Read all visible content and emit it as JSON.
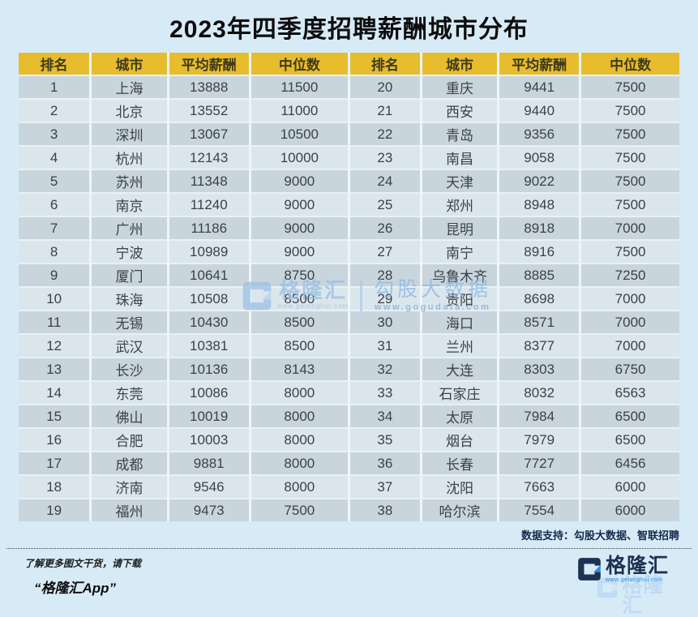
{
  "title": "2023年四季度招聘薪酬城市分布",
  "table": {
    "headers": [
      "排名",
      "城市",
      "平均薪酬",
      "中位数",
      "排名",
      "城市",
      "平均薪酬",
      "中位数"
    ]
  },
  "chart_data": {
    "type": "table",
    "title": "2023年四季度招聘薪酬城市分布",
    "columns": [
      "排名",
      "城市",
      "平均薪酬",
      "中位数"
    ],
    "rows": [
      [
        1,
        "上海",
        13888,
        11500
      ],
      [
        2,
        "北京",
        13552,
        11000
      ],
      [
        3,
        "深圳",
        13067,
        10500
      ],
      [
        4,
        "杭州",
        12143,
        10000
      ],
      [
        5,
        "苏州",
        11348,
        9000
      ],
      [
        6,
        "南京",
        11240,
        9000
      ],
      [
        7,
        "广州",
        11186,
        9000
      ],
      [
        8,
        "宁波",
        10989,
        9000
      ],
      [
        9,
        "厦门",
        10641,
        8750
      ],
      [
        10,
        "珠海",
        10508,
        8500
      ],
      [
        11,
        "无锡",
        10430,
        8500
      ],
      [
        12,
        "武汉",
        10381,
        8500
      ],
      [
        13,
        "长沙",
        10136,
        8143
      ],
      [
        14,
        "东莞",
        10086,
        8000
      ],
      [
        15,
        "佛山",
        10019,
        8000
      ],
      [
        16,
        "合肥",
        10003,
        8000
      ],
      [
        17,
        "成都",
        9881,
        8000
      ],
      [
        18,
        "济南",
        9546,
        8000
      ],
      [
        19,
        "福州",
        9473,
        7500
      ],
      [
        20,
        "重庆",
        9441,
        7500
      ],
      [
        21,
        "西安",
        9440,
        7500
      ],
      [
        22,
        "青岛",
        9356,
        7500
      ],
      [
        23,
        "南昌",
        9058,
        7500
      ],
      [
        24,
        "天津",
        9022,
        7500
      ],
      [
        25,
        "郑州",
        8948,
        7500
      ],
      [
        26,
        "昆明",
        8918,
        7000
      ],
      [
        27,
        "南宁",
        8916,
        7500
      ],
      [
        28,
        "乌鲁木齐",
        8885,
        7250
      ],
      [
        29,
        "贵阳",
        8698,
        7000
      ],
      [
        30,
        "海口",
        8571,
        7000
      ],
      [
        31,
        "兰州",
        8377,
        7000
      ],
      [
        32,
        "大连",
        8303,
        6750
      ],
      [
        33,
        "石家庄",
        8032,
        6563
      ],
      [
        34,
        "太原",
        7984,
        6500
      ],
      [
        35,
        "烟台",
        7979,
        6500
      ],
      [
        36,
        "长春",
        7727,
        6456
      ],
      [
        37,
        "沈阳",
        7663,
        6000
      ],
      [
        38,
        "哈尔滨",
        7554,
        6000
      ]
    ]
  },
  "watermark": {
    "brand": "格隆汇",
    "brand_url": "www.gelonghui.com",
    "partner": "勾股大数据",
    "partner_url": "www.gogudata.com"
  },
  "footer": {
    "source": "数据支持：勾股大数据、智联招聘",
    "promo_line1": "了解更多图文干货，请下载",
    "promo_line2": "“格隆汇App”"
  },
  "logo": {
    "name": "格隆汇",
    "url": "www.gelonghui.com"
  },
  "colors": {
    "page_bg": "#D7EBF7",
    "header_bg": "#E7BC2D",
    "header_text": "#3E3A1C",
    "row_odd": "#C9D5DD",
    "row_even": "#DBE6EC",
    "cell_text": "#3C4146",
    "brand_navy": "#1D3150",
    "brand_blue": "#2E8BE6",
    "watermark_blue": "#9CC0E4",
    "source_text": "#15284B"
  }
}
